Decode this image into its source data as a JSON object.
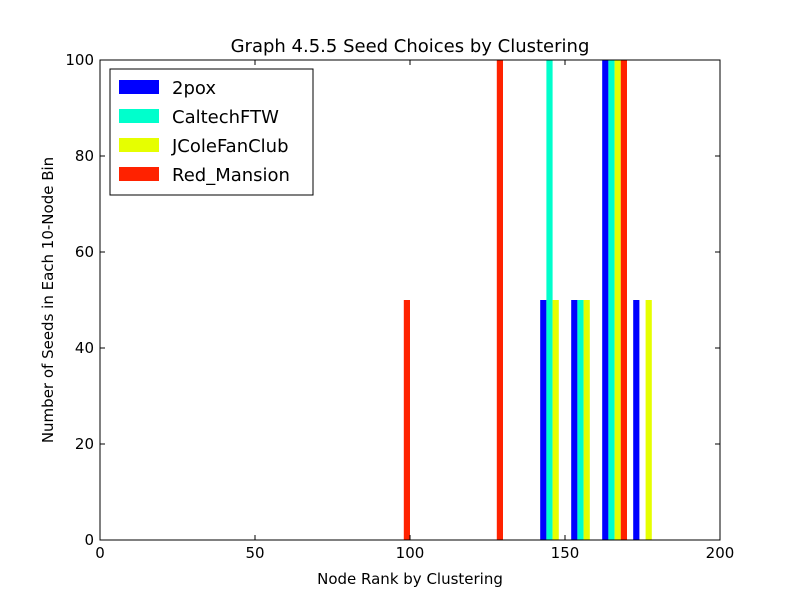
{
  "chart_data": {
    "type": "bar",
    "title": "Graph 4.5.5 Seed Choices by Clustering",
    "xlabel": "Node Rank by Clustering",
    "ylabel": "Number of Seeds in Each 10-Node Bin",
    "xlim": [
      0,
      200
    ],
    "ylim": [
      0,
      100
    ],
    "xticks": [
      "0",
      "50",
      "100",
      "150",
      "200"
    ],
    "yticks": [
      "0",
      "20",
      "40",
      "60",
      "80",
      "100"
    ],
    "grid": false,
    "legend_position": "top-left",
    "series": [
      {
        "name": "2pox",
        "color": "#0000ff",
        "bars": [
          {
            "x": 142,
            "y": 50
          },
          {
            "x": 152,
            "y": 50
          },
          {
            "x": 162,
            "y": 100
          },
          {
            "x": 172,
            "y": 50
          }
        ]
      },
      {
        "name": "CaltechFTW",
        "color": "#00ffcc",
        "bars": [
          {
            "x": 144,
            "y": 100
          },
          {
            "x": 154,
            "y": 50
          },
          {
            "x": 164,
            "y": 100
          }
        ]
      },
      {
        "name": "JColeFanClub",
        "color": "#e6ff00",
        "bars": [
          {
            "x": 146,
            "y": 50
          },
          {
            "x": 156,
            "y": 50
          },
          {
            "x": 166,
            "y": 100
          },
          {
            "x": 176,
            "y": 50
          }
        ]
      },
      {
        "name": "Red_Mansion",
        "color": "#ff2200",
        "bars": [
          {
            "x": 98,
            "y": 50
          },
          {
            "x": 128,
            "y": 100
          },
          {
            "x": 168,
            "y": 100
          }
        ]
      }
    ]
  }
}
